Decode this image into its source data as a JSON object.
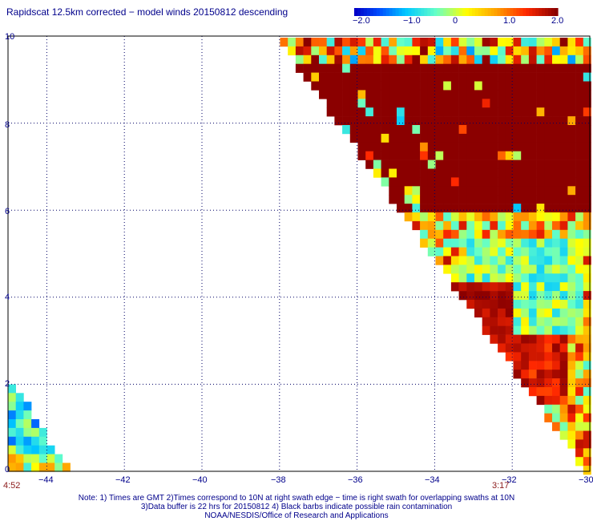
{
  "header": {
    "title": "Rapidscat 12.5km corrected − model winds 20150812 descending"
  },
  "colorbar": {
    "ticks": [
      "−2.0",
      "−1.0",
      "0",
      "1.0",
      "2.0"
    ],
    "colors": [
      "#0000c8",
      "#0080ff",
      "#00e0ff",
      "#80ffb0",
      "#ffff00",
      "#ffa000",
      "#ff3000",
      "#8b0000"
    ]
  },
  "axes": {
    "y_ticks": [
      "10",
      "8",
      "6",
      "4",
      "2",
      "0"
    ],
    "x_ticks": [
      "−44",
      "−42",
      "−40",
      "−38",
      "−36",
      "−34",
      "−32",
      "−30"
    ],
    "time_left": "4:52",
    "time_right": "3:17"
  },
  "footer": {
    "note_line1": "Note: 1) Times are GMT 2)Times correspond to 10N at right swath edge − time is right swath for overlapping swaths at 10N",
    "note_line2": "3)Data buffer is 22 hrs for 20150812 4) Black barbs indicate possible rain contamination",
    "note_line3": "NOAA/NESDIS/Office of Research and Applications"
  },
  "map_data": {
    "lon_range": [
      -45,
      -30
    ],
    "lat_range": [
      0,
      10
    ],
    "variable": "wind speed difference (scatterometer minus model)",
    "value_range": [
      -2.0,
      2.0
    ],
    "swaths": [
      {
        "id": "main-swath",
        "time": "3:17",
        "region": "lat 0-10, lon -38 to -30 (triangle, eastern half)"
      },
      {
        "id": "western-swath",
        "time": "4:52",
        "region": "lat 0-2, lon -45 to -43.5 (corner triangle)"
      }
    ]
  }
}
